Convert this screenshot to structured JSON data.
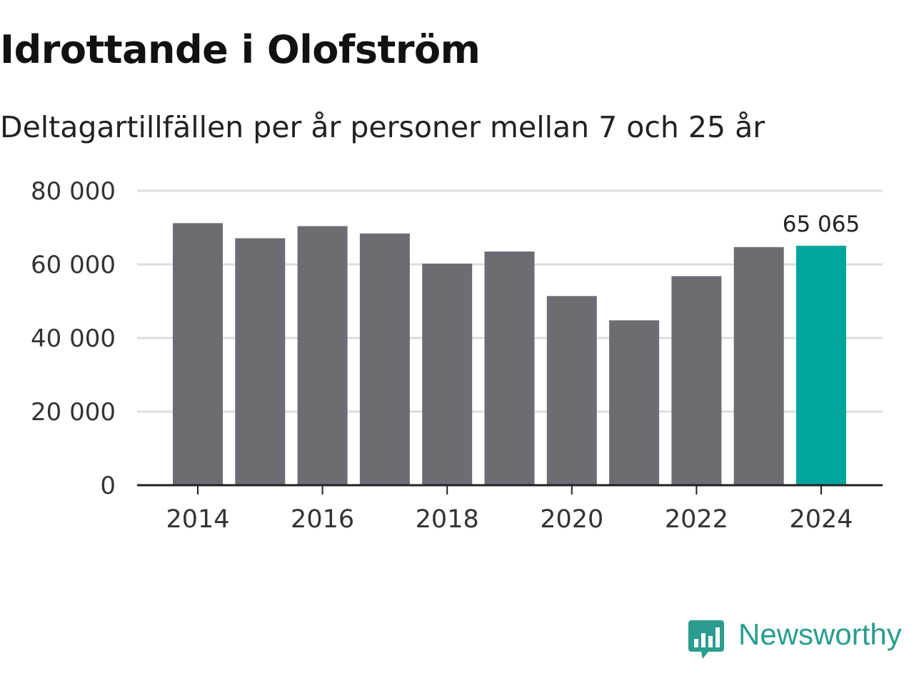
{
  "chart_data": {
    "type": "bar",
    "title": "Idrottande i Olofström",
    "subtitle": "Deltagartillfällen per år personer mellan 7 och 25 år",
    "xlabel": "",
    "ylabel": "",
    "categories": [
      "2014",
      "2015",
      "2016",
      "2017",
      "2018",
      "2019",
      "2020",
      "2021",
      "2022",
      "2023",
      "2024"
    ],
    "values": [
      71200,
      67100,
      70400,
      68400,
      60200,
      63500,
      51400,
      44800,
      56800,
      64700,
      65065
    ],
    "ylim": [
      0,
      80000
    ],
    "yticks": [
      {
        "value": 0,
        "label": "0"
      },
      {
        "value": 20000,
        "label": "20 000"
      },
      {
        "value": 40000,
        "label": "40 000"
      },
      {
        "value": 60000,
        "label": "60 000"
      },
      {
        "value": 80000,
        "label": "80 000"
      }
    ],
    "xticks": [
      "2014",
      "2016",
      "2018",
      "2020",
      "2022",
      "2024"
    ],
    "highlight_index": 10,
    "highlight_label": "65 065",
    "colors": {
      "bar": "#6d6c72",
      "highlight": "#00a59b",
      "grid": "#dddddd",
      "axis": "#222222"
    },
    "grid": true
  },
  "branding": {
    "name": "Newsworthy",
    "icon": "newsworthy-logo-icon",
    "color": "#2a9d8f"
  }
}
